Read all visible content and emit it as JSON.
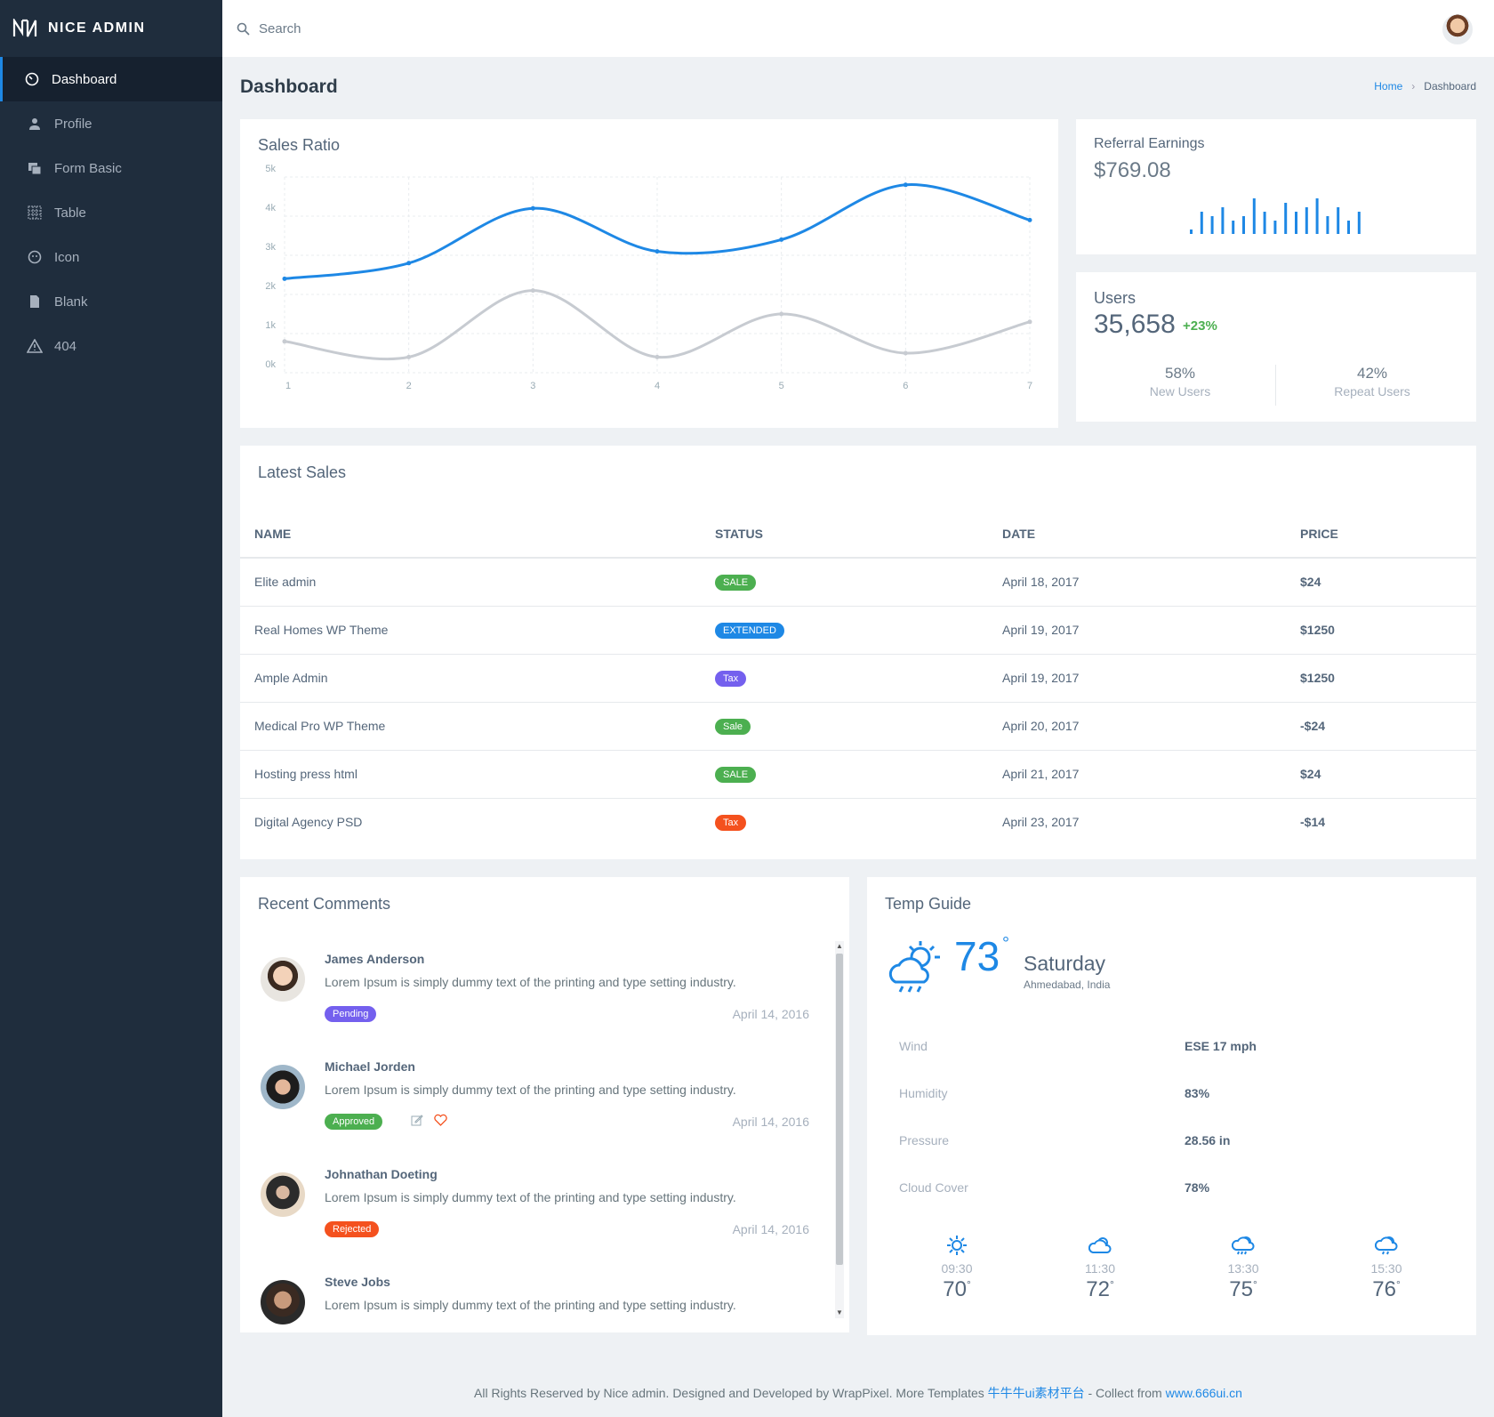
{
  "brand": {
    "name": "NICE ADMIN"
  },
  "sidebar": {
    "items": [
      {
        "label": "Dashboard",
        "icon": "gauge-icon"
      },
      {
        "label": "Profile",
        "icon": "user-icon"
      },
      {
        "label": "Form Basic",
        "icon": "forms-icon"
      },
      {
        "label": "Table",
        "icon": "table-icon"
      },
      {
        "label": "Icon",
        "icon": "smile-icon"
      },
      {
        "label": "Blank",
        "icon": "file-icon"
      },
      {
        "label": "404",
        "icon": "alert-icon"
      }
    ]
  },
  "topbar": {
    "search_placeholder": "Search"
  },
  "page": {
    "title": "Dashboard"
  },
  "breadcrumb": {
    "home": "Home",
    "current": "Dashboard"
  },
  "sales_ratio": {
    "title": "Sales Ratio",
    "chart_data": {
      "type": "line",
      "x": [
        1,
        2,
        3,
        4,
        5,
        6,
        7
      ],
      "ylim": [
        0,
        5
      ],
      "yticks": [
        "0k",
        "1k",
        "2k",
        "3k",
        "4k",
        "5k"
      ],
      "grid": true,
      "series": [
        {
          "values": [
            2.4,
            2.8,
            4.2,
            3.1,
            3.4,
            4.8,
            3.9
          ],
          "color": "#1e88e5"
        },
        {
          "values": [
            0.8,
            0.4,
            2.1,
            0.4,
            1.5,
            0.5,
            1.3
          ],
          "color": "#c7cbd1"
        }
      ]
    }
  },
  "referral": {
    "title": "Referral Earnings",
    "value": "$769.08",
    "sparkline": [
      1,
      5,
      4,
      6,
      3,
      4,
      8,
      5,
      3,
      7,
      5,
      6,
      8,
      4,
      6,
      3,
      5
    ]
  },
  "users": {
    "title": "Users",
    "value": "35,658",
    "growth": "+23%",
    "stats": [
      {
        "pct": "58%",
        "label": "New Users"
      },
      {
        "pct": "42%",
        "label": "Repeat Users"
      }
    ]
  },
  "latest_sales": {
    "title": "Latest Sales",
    "columns": [
      "NAME",
      "STATUS",
      "DATE",
      "PRICE"
    ],
    "rows": [
      {
        "name": "Elite admin",
        "status": "SALE",
        "status_color": "#4caf50",
        "date": "April 18, 2017",
        "price": "$24"
      },
      {
        "name": "Real Homes WP Theme",
        "status": "EXTENDED",
        "status_color": "#1e88e5",
        "date": "April 19, 2017",
        "price": "$1250"
      },
      {
        "name": "Ample Admin",
        "status": "Tax",
        "status_color": "#7460ee",
        "date": "April 19, 2017",
        "price": "$1250"
      },
      {
        "name": "Medical Pro WP Theme",
        "status": "Sale",
        "status_color": "#4caf50",
        "date": "April 20, 2017",
        "price": "-$24"
      },
      {
        "name": "Hosting press html",
        "status": "SALE",
        "status_color": "#4caf50",
        "date": "April 21, 2017",
        "price": "$24"
      },
      {
        "name": "Digital Agency PSD",
        "status": "Tax",
        "status_color": "#f4511e",
        "date": "April 23, 2017",
        "price": "-$14"
      }
    ]
  },
  "comments": {
    "title": "Recent Comments",
    "items": [
      {
        "name": "James Anderson",
        "text": "Lorem Ipsum is simply dummy text of the printing and type setting industry.",
        "status": "Pending",
        "status_color": "#7460ee",
        "date": "April 14, 2016"
      },
      {
        "name": "Michael Jorden",
        "text": "Lorem Ipsum is simply dummy text of the printing and type setting industry.",
        "status": "Approved",
        "status_color": "#4caf50",
        "date": "April 14, 2016"
      },
      {
        "name": "Johnathan Doeting",
        "text": "Lorem Ipsum is simply dummy text of the printing and type setting industry.",
        "status": "Rejected",
        "status_color": "#f4511e",
        "date": "April 14, 2016"
      },
      {
        "name": "Steve Jobs",
        "text": "Lorem Ipsum is simply dummy text of the printing and type setting industry.",
        "status": "",
        "status_color": "",
        "date": ""
      }
    ]
  },
  "temp": {
    "title": "Temp Guide",
    "temperature": "73",
    "deg": "°",
    "day": "Saturday",
    "location": "Ahmedabad, India",
    "details": [
      {
        "k": "Wind",
        "v": "ESE 17 mph"
      },
      {
        "k": "Humidity",
        "v": "83%"
      },
      {
        "k": "Pressure",
        "v": "28.56 in"
      },
      {
        "k": "Cloud Cover",
        "v": "78%"
      }
    ],
    "forecast": [
      {
        "time": "09:30",
        "temp": "70",
        "icon": "sun-icon"
      },
      {
        "time": "11:30",
        "temp": "72",
        "icon": "cloudy-icon"
      },
      {
        "time": "13:30",
        "temp": "75",
        "icon": "rain-icon"
      },
      {
        "time": "15:30",
        "temp": "76",
        "icon": "storm-icon"
      }
    ]
  },
  "footer": {
    "text": "All Rights Reserved by Nice admin. Designed and Developed by WrapPixel. More Templates ",
    "link1": "牛牛牛ui素材平台",
    "mid": " - Collect from ",
    "link2": "www.666ui.cn"
  },
  "colors": {
    "sidebar": "#1f2d3d",
    "accent": "#1e88e5",
    "success": "#4caf50"
  }
}
